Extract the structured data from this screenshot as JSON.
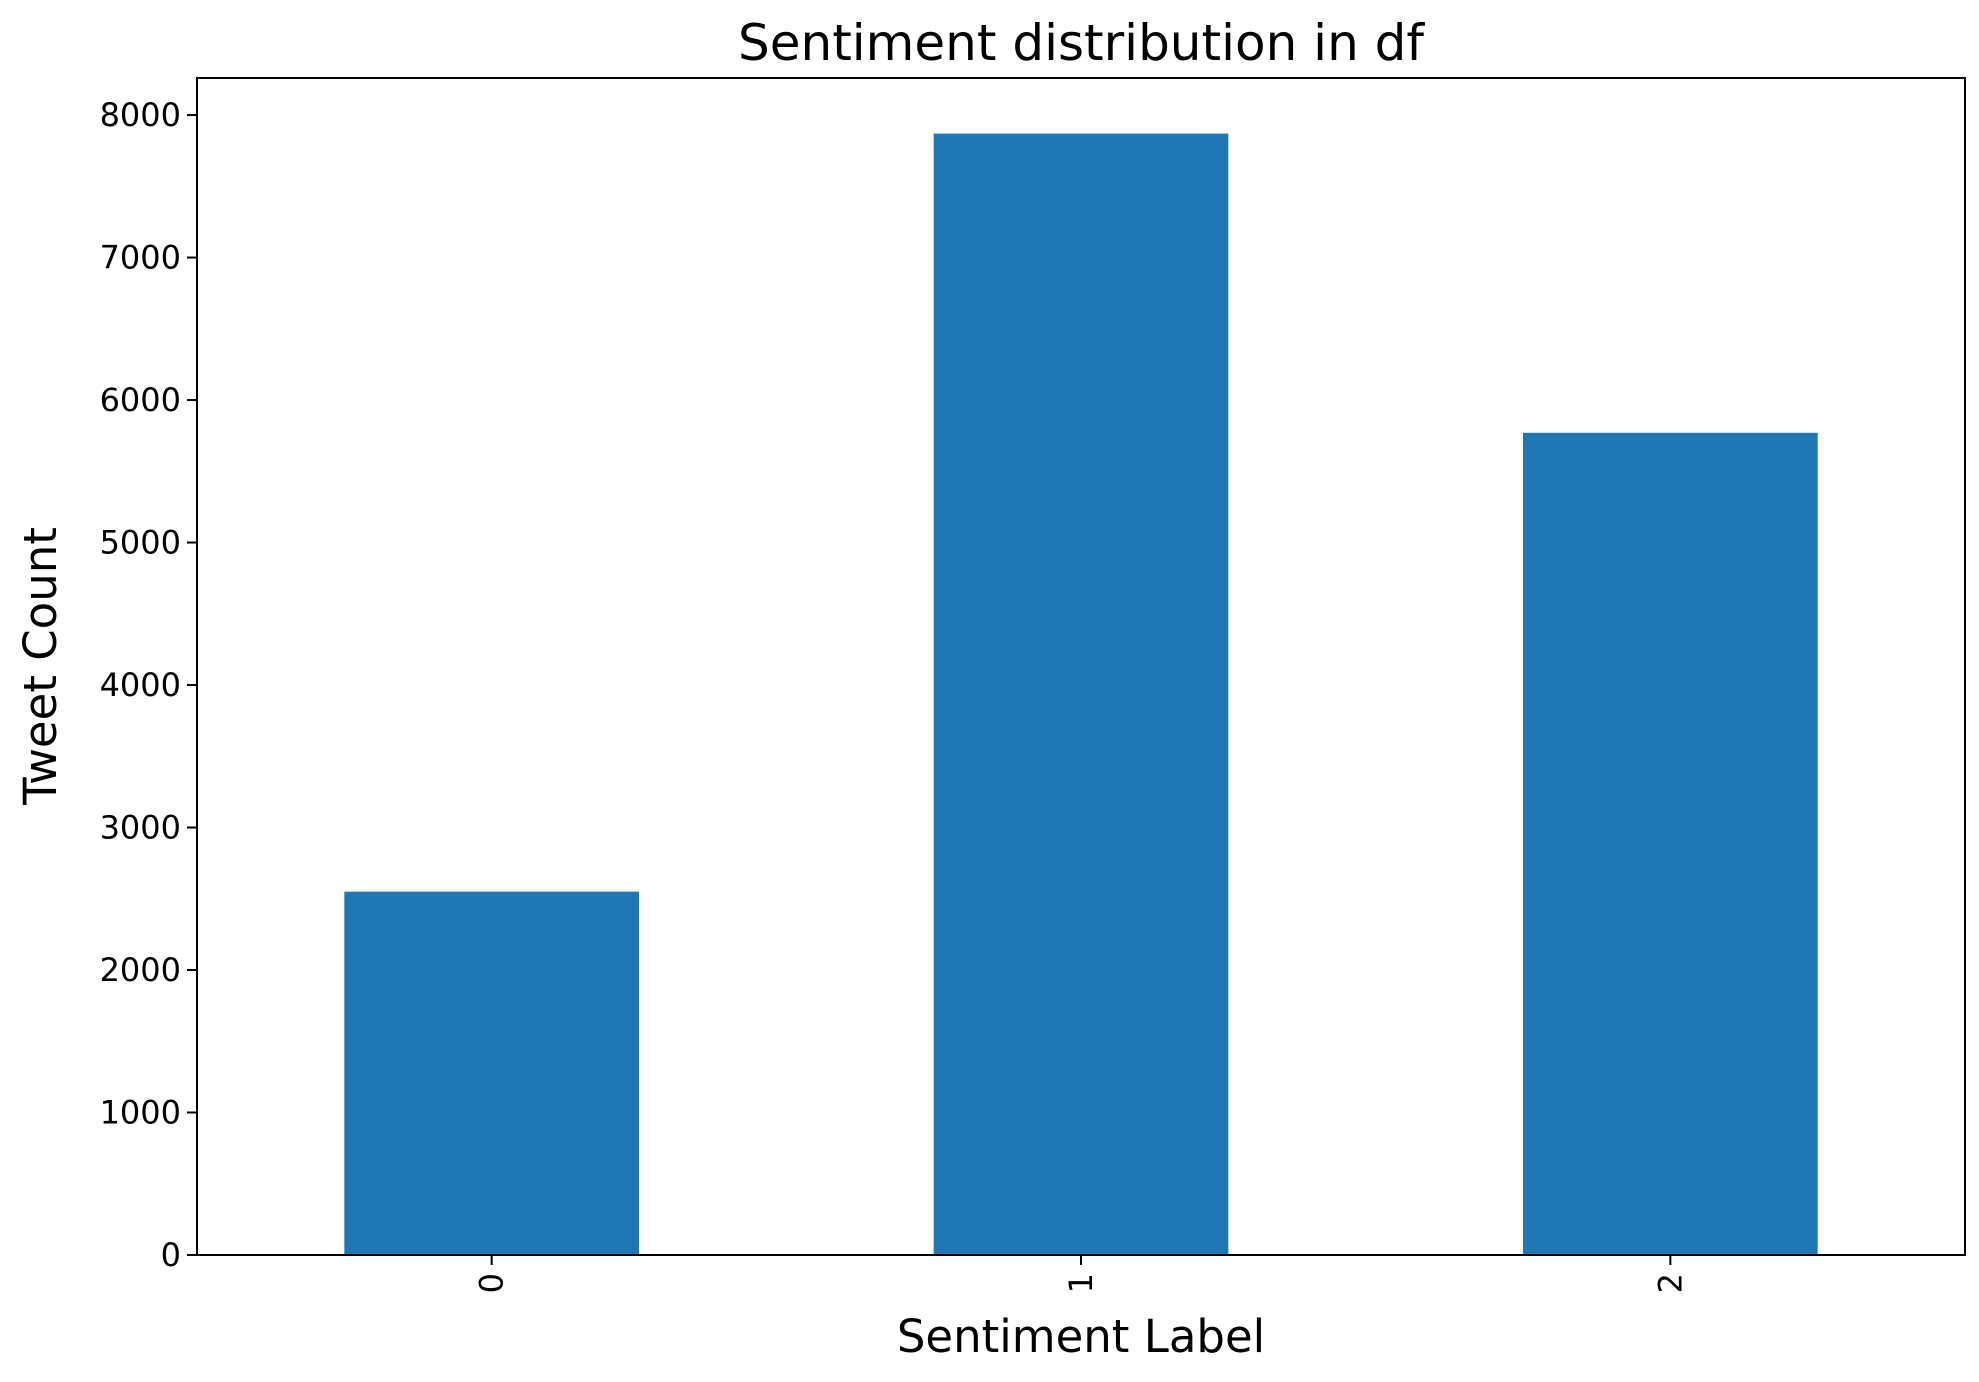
{
  "chart_data": {
    "type": "bar",
    "title": "Sentiment distribution in df",
    "xlabel": "Sentiment Label",
    "ylabel": "Tweet Count",
    "categories": [
      "0",
      "1",
      "2"
    ],
    "values": [
      2550,
      7870,
      5770
    ],
    "ylim": [
      0,
      8260
    ],
    "yticks": [
      0,
      1000,
      2000,
      3000,
      4000,
      5000,
      6000,
      7000,
      8000
    ],
    "x_tick_rotation": 90,
    "grid": false,
    "legend": "none",
    "bar_color": "#1f77b4"
  }
}
